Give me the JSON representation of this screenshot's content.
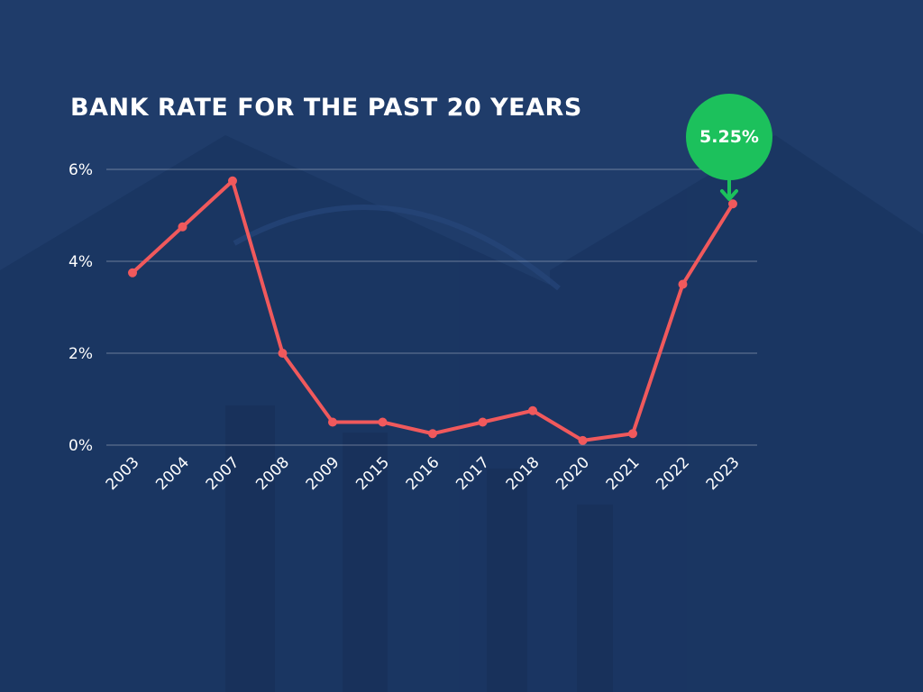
{
  "chart_data": {
    "type": "line",
    "title": "BANK RATE FOR THE PAST 20 YEARS",
    "categories": [
      "2003",
      "2004",
      "2007",
      "2008",
      "2009",
      "2015",
      "2016",
      "2017",
      "2018",
      "2020",
      "2021",
      "2022",
      "2023"
    ],
    "series": [
      {
        "values": [
          3.75,
          4.75,
          5.75,
          2.0,
          0.5,
          0.5,
          0.25,
          0.5,
          0.75,
          0.1,
          0.25,
          3.5,
          5.25
        ]
      }
    ],
    "yticks": [
      "0%",
      "2%",
      "4%",
      "6%"
    ],
    "ylim": [
      0,
      6
    ],
    "grid": true,
    "xlabel": "",
    "ylabel": "",
    "annotation": {
      "label": "5.25%",
      "category": "2023"
    }
  },
  "colors": {
    "background": "#1f3c6a",
    "line": "#f0595c",
    "callout": "#1cc15c",
    "text": "#ffffff"
  }
}
